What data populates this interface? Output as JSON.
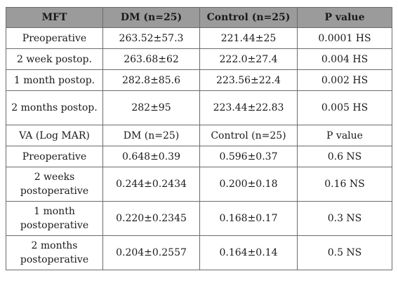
{
  "header": [
    "MFT",
    "DM (n=25)",
    "Control (n=25)",
    "P value"
  ],
  "rows": [
    [
      "Preoperative",
      "263.52±57.3",
      "221.44±25",
      "0.0001 HS"
    ],
    [
      "2 week postop.",
      "263.68±62",
      "222.0±27.4",
      "0.004 HS"
    ],
    [
      "1 month postop.",
      "282.8±85.6",
      "223.56±22.4",
      "0.002 HS"
    ],
    [
      "2 months postop.",
      "282±95",
      "223.44±22.83",
      "0.005 HS"
    ],
    [
      "VA (Log MAR)",
      "DM (n=25)",
      "Control (n=25)",
      "P value"
    ],
    [
      "Preoperative",
      "0.648±0.39",
      "0.596±0.37",
      "0.6 NS"
    ],
    [
      "2 weeks postoperative",
      "0.244±0.2434",
      "0.200±0.18",
      "0.16 NS"
    ],
    [
      "1 month postoperative",
      "0.220±0.2345",
      "0.168±0.17",
      "0.3 NS"
    ],
    [
      "2 months postoperative",
      "0.204±0.2557",
      "0.164±0.14",
      "0.5 NS"
    ]
  ]
}
